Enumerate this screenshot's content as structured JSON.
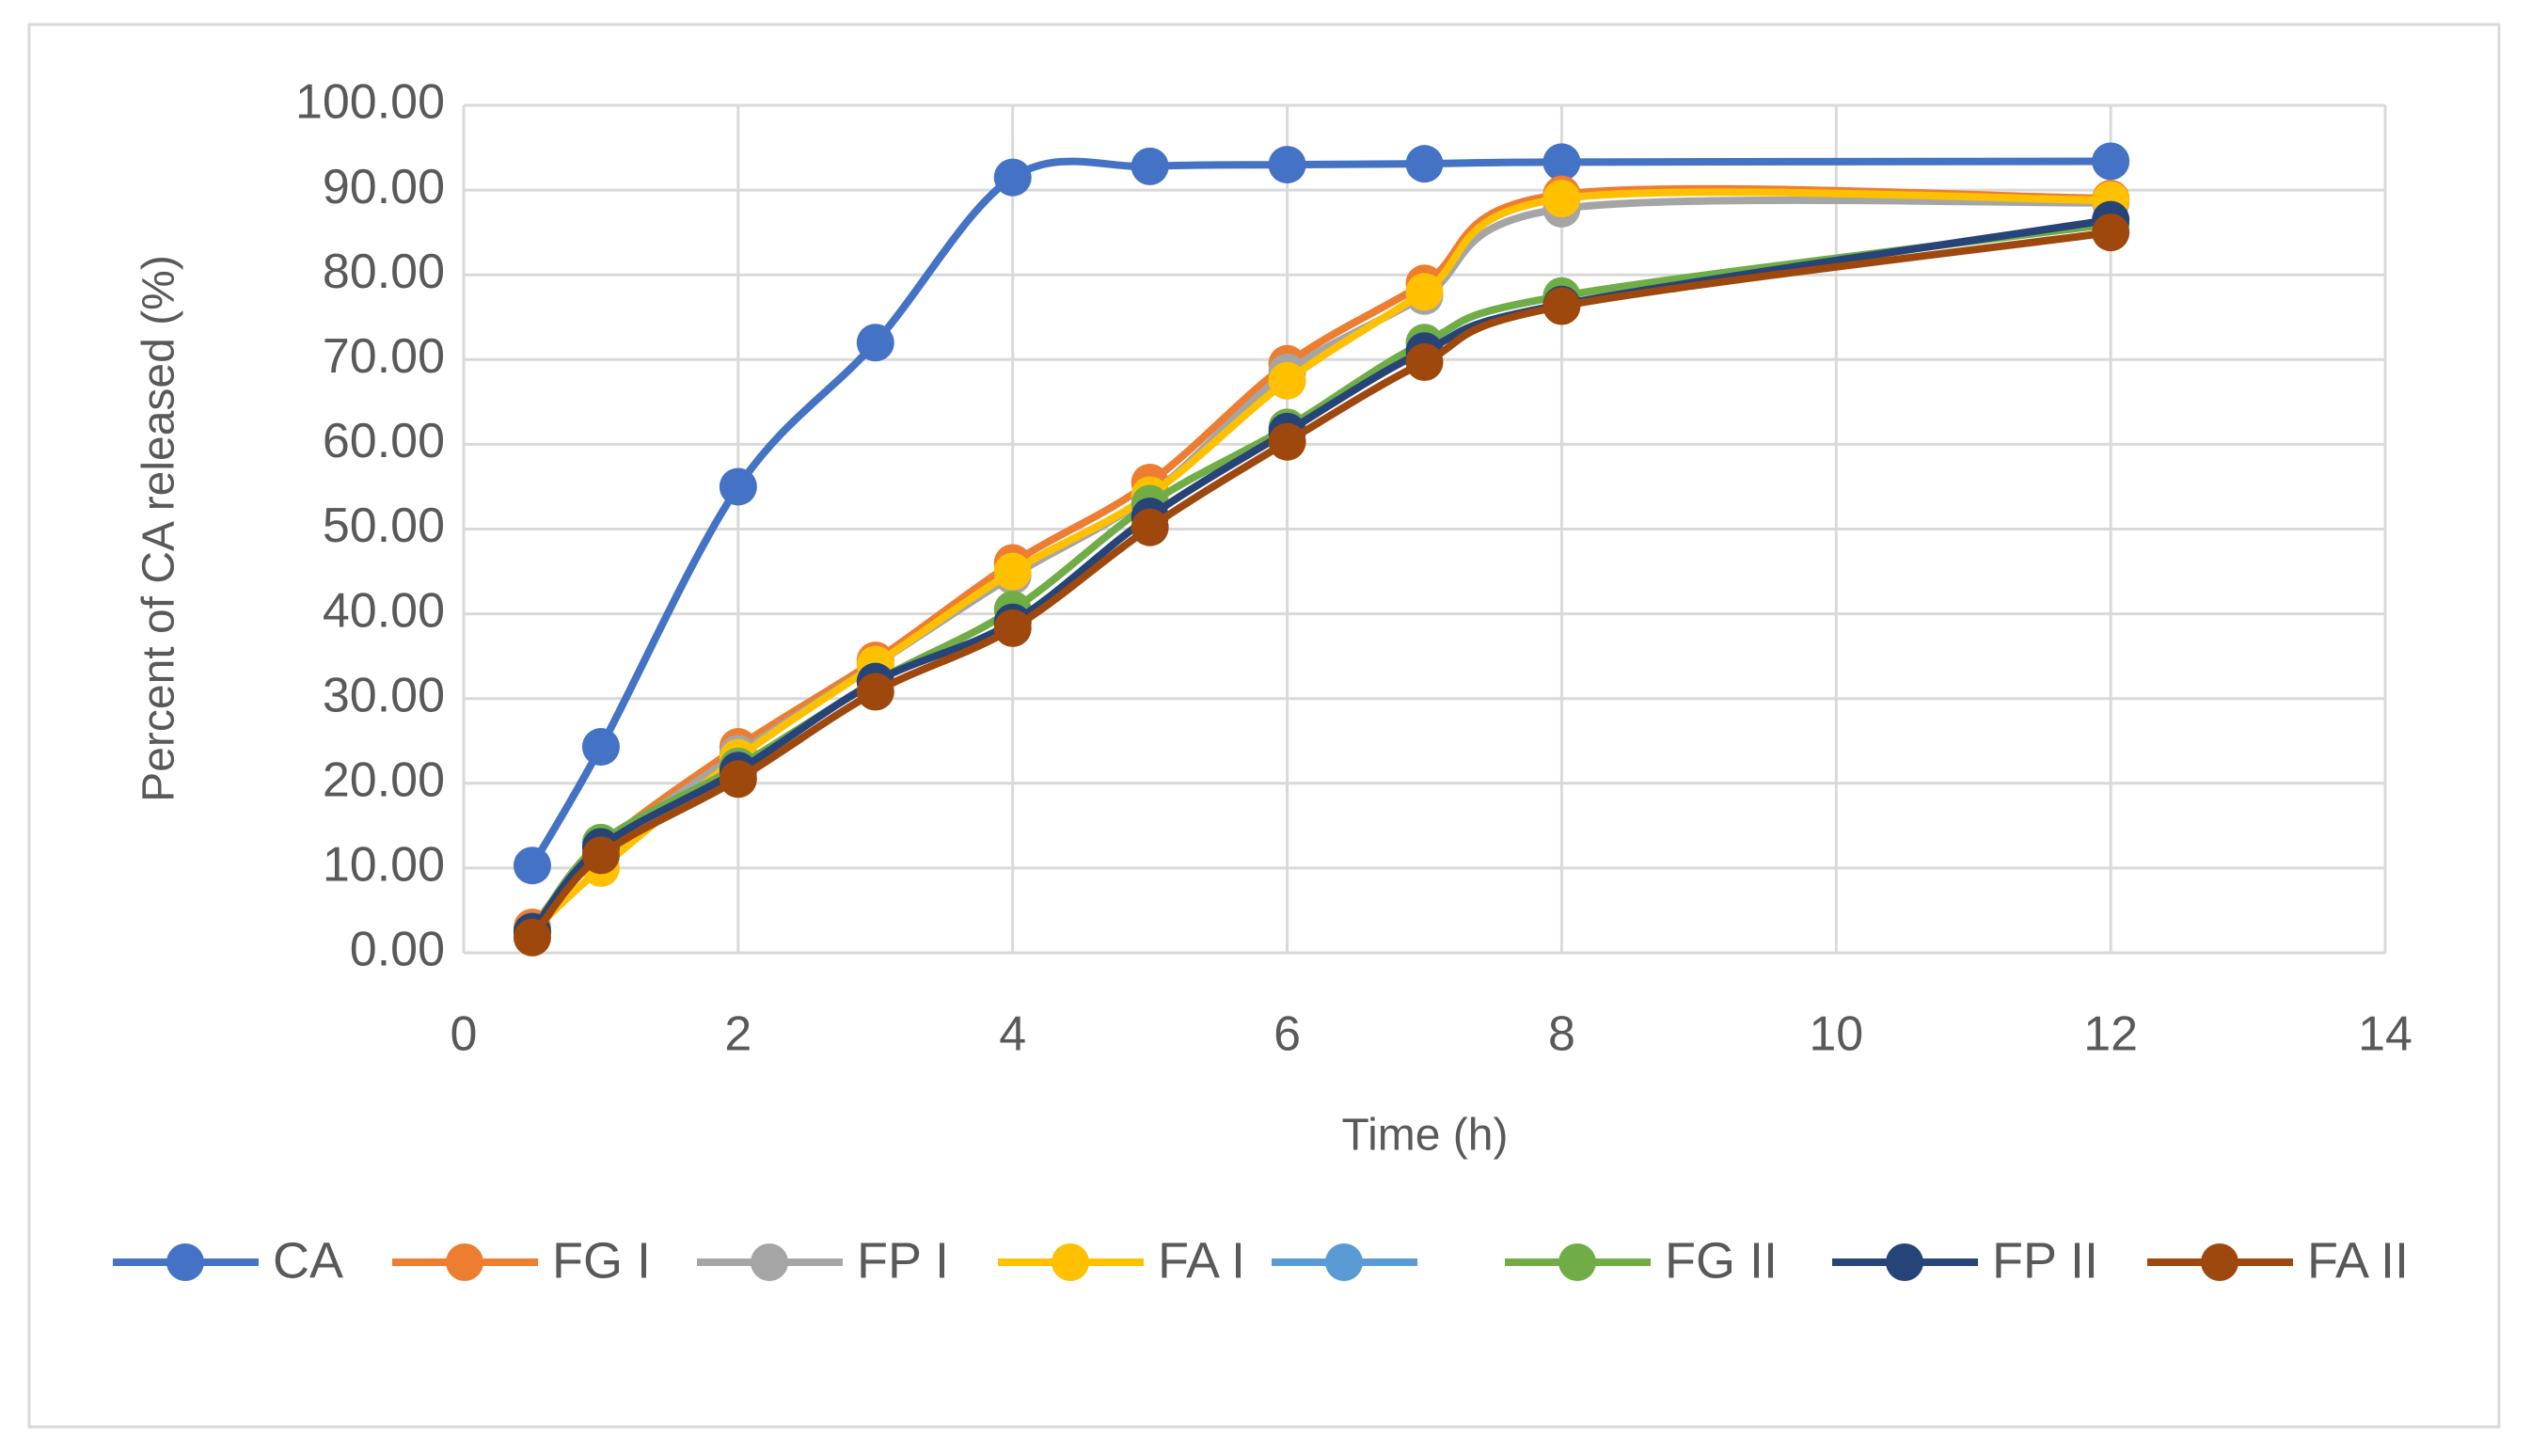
{
  "chart_data": {
    "type": "line",
    "x_label": "Time (h)",
    "y_label": "Percent of CA released (%)",
    "x": [
      0.5,
      1,
      2,
      3,
      4,
      5,
      6,
      7,
      8,
      12
    ],
    "xlim": [
      0,
      14
    ],
    "xticks": [
      0,
      2,
      4,
      6,
      8,
      10,
      12,
      14
    ],
    "ylim": [
      0,
      100
    ],
    "yticks": [
      {
        "value": 0,
        "label": "0.00"
      },
      {
        "value": 10,
        "label": "10.00"
      },
      {
        "value": 20,
        "label": "20.00"
      },
      {
        "value": 30,
        "label": "30.00"
      },
      {
        "value": 40,
        "label": "40.00"
      },
      {
        "value": 50,
        "label": "50.00"
      },
      {
        "value": 60,
        "label": "60.00"
      },
      {
        "value": 70,
        "label": "70.00"
      },
      {
        "value": 80,
        "label": "80.00"
      },
      {
        "value": 90,
        "label": "90.00"
      },
      {
        "value": 100,
        "label": "100.00"
      }
    ],
    "grid": true,
    "smooth": true,
    "legend": "bottom",
    "series": [
      {
        "name": "CA",
        "color": "#4472c4",
        "values": [
          10.3,
          24.3,
          55,
          72,
          91.5,
          92.8,
          93,
          93.1,
          93.3,
          93.4
        ]
      },
      {
        "name": "FG I",
        "color": "#ed7d31",
        "values": [
          3,
          12.5,
          24.3,
          34.5,
          46,
          55.5,
          69.5,
          79,
          89.5,
          89
        ]
      },
      {
        "name": "FP I",
        "color": "#a5a5a5",
        "values": [
          2.5,
          12,
          23.5,
          34,
          44.5,
          54,
          68.5,
          77.5,
          87.8,
          88.5
        ]
      },
      {
        "name": "FA I",
        "color": "#ffc000",
        "values": [
          2.5,
          10,
          23,
          34,
          45,
          54,
          67.5,
          78,
          89,
          88.8
        ]
      },
      {
        "name": null,
        "color": "#5b9bd5",
        "values": [
          null,
          null,
          null,
          null,
          null,
          null,
          null,
          null,
          null,
          null
        ]
      },
      {
        "name": "FG II",
        "color": "#70ad47",
        "values": [
          2.5,
          13,
          22,
          32,
          40.5,
          53,
          62,
          72,
          77.5,
          86
        ]
      },
      {
        "name": "FP II",
        "color": "#264478",
        "values": [
          2.5,
          12.5,
          21.5,
          32,
          39,
          51.5,
          61.5,
          71,
          76.5,
          86.5
        ]
      },
      {
        "name": "FA II",
        "color": "#9e480e",
        "values": [
          1.8,
          11.5,
          20.5,
          30.8,
          38.3,
          50.2,
          60.3,
          69.7,
          76.3,
          85
        ]
      }
    ]
  }
}
